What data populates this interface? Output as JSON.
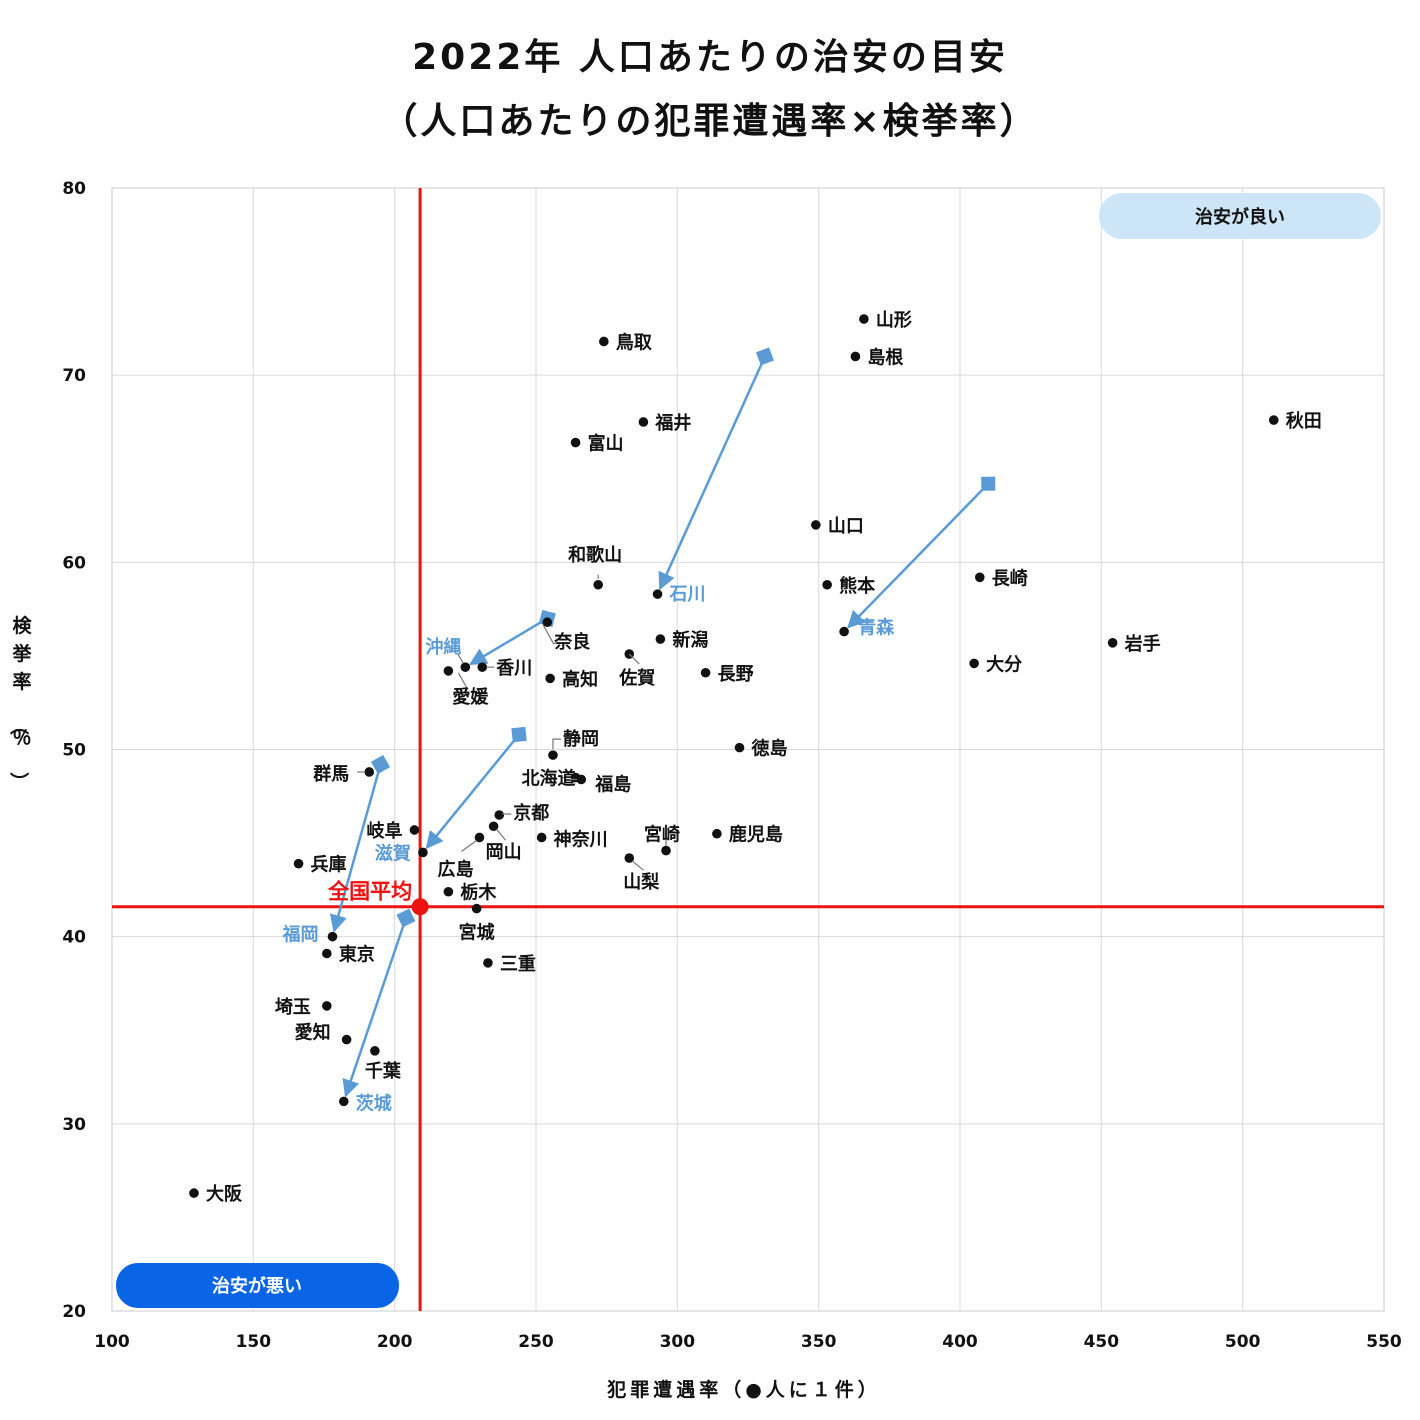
{
  "title_line1": "2022年 人口あたりの治安の目安",
  "title_line2": "（人口あたりの犯罪遭遇率×検挙率）",
  "colors": {
    "accent_red": "#ee1111",
    "arrow_blue": "#5b9bd5",
    "good_badge": "#cde6f7",
    "bad_badge": "#0a64e6",
    "grid": "#d9d9d9"
  },
  "chart_data": {
    "type": "scatter",
    "xlabel": "犯罪遭遇率（●人に１件）",
    "ylabel": "検挙率（％）",
    "xlim": [
      100,
      550
    ],
    "ylim": [
      20,
      80
    ],
    "x_ticks": [
      100,
      150,
      200,
      250,
      300,
      350,
      400,
      450,
      500,
      550
    ],
    "y_ticks": [
      20,
      30,
      40,
      50,
      60,
      70,
      80
    ],
    "grid": true,
    "national_average": {
      "label": "全国平均",
      "x": 209,
      "y": 41.6
    },
    "badges": {
      "good": "治安が良い",
      "bad": "治安が悪い"
    },
    "points": [
      {
        "name": "山形",
        "x": 366,
        "y": 73.0
      },
      {
        "name": "島根",
        "x": 363,
        "y": 71.0
      },
      {
        "name": "鳥取",
        "x": 274,
        "y": 71.8
      },
      {
        "name": "秋田",
        "x": 511,
        "y": 67.6
      },
      {
        "name": "福井",
        "x": 288,
        "y": 67.5
      },
      {
        "name": "富山",
        "x": 264,
        "y": 66.4
      },
      {
        "name": "山口",
        "x": 349,
        "y": 62.0
      },
      {
        "name": "長崎",
        "x": 407,
        "y": 59.2
      },
      {
        "name": "熊本",
        "x": 353,
        "y": 58.8
      },
      {
        "name": "和歌山",
        "x": 272,
        "y": 58.8
      },
      {
        "name": "石川",
        "x": 293,
        "y": 58.3,
        "highlight": true
      },
      {
        "name": "青森",
        "x": 359,
        "y": 56.3,
        "highlight": true
      },
      {
        "name": "奈良",
        "x": 254,
        "y": 56.8
      },
      {
        "name": "岩手",
        "x": 454,
        "y": 55.7
      },
      {
        "name": "新潟",
        "x": 294,
        "y": 55.9
      },
      {
        "name": "大分",
        "x": 405,
        "y": 54.6
      },
      {
        "name": "佐賀",
        "x": 283,
        "y": 55.1
      },
      {
        "name": "長野",
        "x": 310,
        "y": 54.1
      },
      {
        "name": "高知",
        "x": 255,
        "y": 53.8
      },
      {
        "name": "香川",
        "x": 231,
        "y": 54.4
      },
      {
        "name": "沖縄",
        "x": 225,
        "y": 54.4,
        "highlight": true
      },
      {
        "name": "愛媛",
        "x": 219,
        "y": 54.2
      },
      {
        "name": "徳島",
        "x": 322,
        "y": 50.1
      },
      {
        "name": "静岡",
        "x": 256,
        "y": 49.7
      },
      {
        "name": "北海道",
        "x": 264,
        "y": 48.5
      },
      {
        "name": "福島",
        "x": 266,
        "y": 48.4
      },
      {
        "name": "群馬",
        "x": 191,
        "y": 48.8
      },
      {
        "name": "京都",
        "x": 237,
        "y": 46.5
      },
      {
        "name": "岡山",
        "x": 235,
        "y": 45.9
      },
      {
        "name": "岐阜",
        "x": 207,
        "y": 45.7
      },
      {
        "name": "鹿児島",
        "x": 314,
        "y": 45.5
      },
      {
        "name": "神奈川",
        "x": 252,
        "y": 45.3
      },
      {
        "name": "広島",
        "x": 230,
        "y": 45.3
      },
      {
        "name": "宮崎",
        "x": 296,
        "y": 44.6
      },
      {
        "name": "滋賀",
        "x": 210,
        "y": 44.5,
        "highlight": true
      },
      {
        "name": "山梨",
        "x": 283,
        "y": 44.2
      },
      {
        "name": "兵庫",
        "x": 166,
        "y": 43.9
      },
      {
        "name": "栃木",
        "x": 219,
        "y": 42.4
      },
      {
        "name": "宮城",
        "x": 229,
        "y": 41.5
      },
      {
        "name": "福岡",
        "x": 178,
        "y": 40.0,
        "highlight": true
      },
      {
        "name": "東京",
        "x": 176,
        "y": 39.1
      },
      {
        "name": "三重",
        "x": 233,
        "y": 38.6
      },
      {
        "name": "埼玉",
        "x": 176,
        "y": 36.3
      },
      {
        "name": "愛知",
        "x": 183,
        "y": 34.5
      },
      {
        "name": "千葉",
        "x": 193,
        "y": 33.9
      },
      {
        "name": "茨城",
        "x": 182,
        "y": 31.2,
        "highlight": true
      },
      {
        "name": "大阪",
        "x": 129,
        "y": 26.3
      }
    ],
    "arrows": [
      {
        "from": [
          331,
          71.0
        ],
        "to": [
          293,
          58.3
        ]
      },
      {
        "from": [
          410,
          64.2
        ],
        "to": [
          359,
          56.3
        ]
      },
      {
        "from": [
          254,
          57.0
        ],
        "to": [
          225,
          54.4
        ]
      },
      {
        "from": [
          244,
          50.8
        ],
        "to": [
          210,
          44.5
        ]
      },
      {
        "from": [
          195,
          49.2
        ],
        "to": [
          178,
          40.0
        ]
      },
      {
        "from": [
          204,
          41.0
        ],
        "to": [
          182,
          31.2
        ]
      }
    ]
  }
}
